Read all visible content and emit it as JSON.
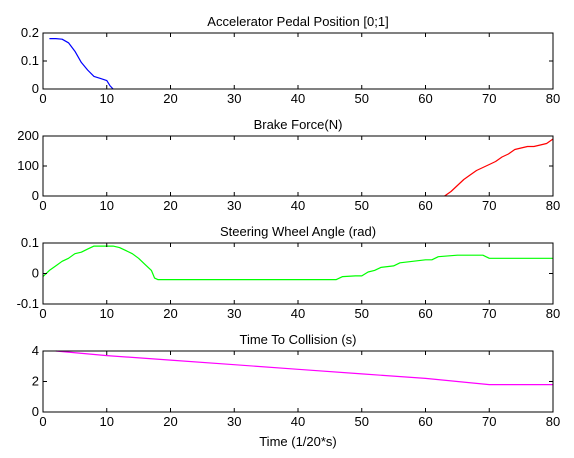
{
  "figure": {
    "background": "#ffffff",
    "xlabel": "Time (1/20*s)"
  },
  "chart_data": [
    {
      "type": "line",
      "title": "Accelerator Pedal Position [0;1]",
      "xlim": [
        0,
        80
      ],
      "ylim": [
        0,
        0.2
      ],
      "xticks": [
        0,
        10,
        20,
        30,
        40,
        50,
        60,
        70,
        80
      ],
      "yticks": [
        0,
        0.1,
        0.2
      ],
      "ytick_labels": [
        "0",
        "0.1",
        "0.2"
      ],
      "grid": false,
      "series": [
        {
          "color": "#0000ff",
          "x": [
            1,
            2,
            3,
            4,
            5,
            6,
            7,
            8,
            9,
            10,
            10.5,
            11
          ],
          "y": [
            0.18,
            0.18,
            0.178,
            0.165,
            0.135,
            0.095,
            0.068,
            0.045,
            0.038,
            0.03,
            0.012,
            0.0
          ]
        }
      ]
    },
    {
      "type": "line",
      "title": "Brake Force(N)",
      "xlim": [
        0,
        80
      ],
      "ylim": [
        0,
        200
      ],
      "xticks": [
        0,
        10,
        20,
        30,
        40,
        50,
        60,
        70,
        80
      ],
      "yticks": [
        0,
        100,
        200
      ],
      "ytick_labels": [
        "0",
        "100",
        "200"
      ],
      "grid": false,
      "series": [
        {
          "color": "#ff0000",
          "x": [
            63,
            64,
            65,
            66,
            67,
            68,
            69,
            70,
            71,
            72,
            73,
            74,
            75,
            76,
            77,
            78,
            79,
            80
          ],
          "y": [
            0,
            15,
            35,
            55,
            70,
            85,
            95,
            105,
            115,
            130,
            140,
            155,
            160,
            165,
            165,
            170,
            175,
            190
          ]
        }
      ]
    },
    {
      "type": "line",
      "title": "Steering Wheel Angle (rad)",
      "xlim": [
        0,
        80
      ],
      "ylim": [
        -0.1,
        0.1
      ],
      "xticks": [
        0,
        10,
        20,
        30,
        40,
        50,
        60,
        70,
        80
      ],
      "yticks": [
        -0.1,
        0,
        0.1
      ],
      "ytick_labels": [
        "-0.1",
        "0",
        "0.1"
      ],
      "grid": false,
      "series": [
        {
          "color": "#00ff00",
          "x": [
            0,
            1,
            2,
            3,
            4,
            5,
            6,
            7,
            8,
            9,
            10,
            11,
            12,
            13,
            14,
            15,
            16,
            17,
            17.5,
            18,
            20,
            30,
            40,
            45,
            46,
            47,
            49,
            50,
            51,
            52,
            53,
            55,
            56,
            58,
            60,
            61,
            62,
            65,
            68,
            69,
            70,
            75,
            80
          ],
          "y": [
            -0.01,
            0.01,
            0.025,
            0.04,
            0.05,
            0.065,
            0.07,
            0.08,
            0.09,
            0.09,
            0.09,
            0.09,
            0.085,
            0.075,
            0.065,
            0.05,
            0.03,
            0.01,
            -0.015,
            -0.02,
            -0.02,
            -0.02,
            -0.02,
            -0.02,
            -0.02,
            -0.01,
            -0.008,
            -0.008,
            0.005,
            0.01,
            0.02,
            0.025,
            0.035,
            0.04,
            0.045,
            0.045,
            0.055,
            0.06,
            0.06,
            0.06,
            0.05,
            0.05,
            0.05
          ]
        }
      ]
    },
    {
      "type": "line",
      "title": "Time To Collision (s)",
      "xlim": [
        0,
        80
      ],
      "ylim": [
        0,
        4
      ],
      "xticks": [
        0,
        10,
        20,
        30,
        40,
        50,
        60,
        70,
        80
      ],
      "yticks": [
        0,
        2,
        4
      ],
      "ytick_labels": [
        "0",
        "2",
        "4"
      ],
      "grid": false,
      "series": [
        {
          "color": "#ff00ff",
          "x": [
            2,
            10,
            20,
            30,
            40,
            50,
            60,
            65,
            70,
            75,
            80
          ],
          "y": [
            4.0,
            3.7,
            3.4,
            3.1,
            2.8,
            2.5,
            2.2,
            2.0,
            1.8,
            1.8,
            1.8
          ]
        }
      ]
    }
  ]
}
